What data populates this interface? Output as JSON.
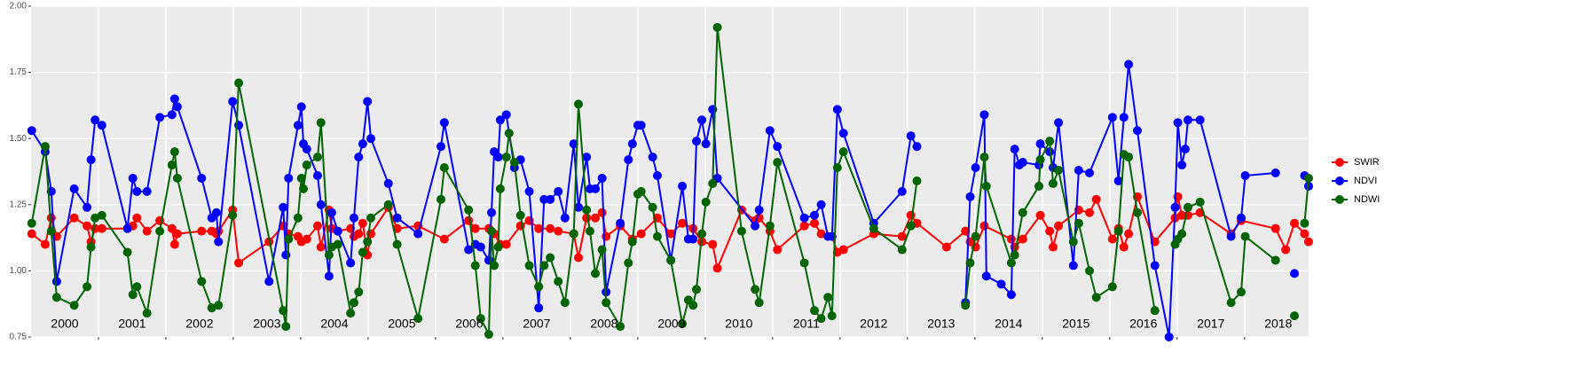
{
  "chart_data": {
    "type": "line",
    "xlim": [
      2000,
      2018.95
    ],
    "ylim": [
      0.75,
      2.0
    ],
    "yticks": [
      {
        "value": 0.75,
        "label": "0.75"
      },
      {
        "value": 1,
        "label": "1.00"
      },
      {
        "value": 1.25,
        "label": "1.25"
      },
      {
        "value": 1.5,
        "label": "1.50"
      },
      {
        "value": 1.75,
        "label": "1.75"
      },
      {
        "value": 2,
        "label": "2.00"
      }
    ],
    "xticks": [
      2001,
      2002,
      2003,
      2004,
      2005,
      2006,
      2007,
      2008,
      2009,
      2010,
      2011,
      2012,
      2013,
      2014,
      2015,
      2016,
      2017,
      2018
    ],
    "grid": true,
    "legend": "right",
    "annotations": [
      {
        "text": "2000",
        "x": 2000.5
      },
      {
        "text": "2001",
        "x": 2001.5
      },
      {
        "text": "2002",
        "x": 2002.5
      },
      {
        "text": "2003",
        "x": 2003.5
      },
      {
        "text": "2004",
        "x": 2004.5
      },
      {
        "text": "2005",
        "x": 2005.5
      },
      {
        "text": "2006",
        "x": 2006.5
      },
      {
        "text": "2007",
        "x": 2007.5
      },
      {
        "text": "2008",
        "x": 2008.5
      },
      {
        "text": "2009",
        "x": 2009.5
      },
      {
        "text": "2010",
        "x": 2010.5
      },
      {
        "text": "2011",
        "x": 2011.5
      },
      {
        "text": "2012",
        "x": 2012.5
      },
      {
        "text": "2013",
        "x": 2013.5
      },
      {
        "text": "2014",
        "x": 2014.5
      },
      {
        "text": "2015",
        "x": 2015.5
      },
      {
        "text": "2016",
        "x": 2016.5
      },
      {
        "text": "2017",
        "x": 2017.5
      },
      {
        "text": "2018",
        "x": 2018.5
      }
    ],
    "series": [
      {
        "name": "SWIR",
        "color": "#ff0000",
        "x": [
          2000.01,
          2000.21,
          2000.3,
          2000.38,
          2000.64,
          2000.83,
          2000.89,
          2000.95,
          2001.05,
          2001.43,
          2001.51,
          2001.57,
          2001.72,
          2001.91,
          2002.09,
          2002.13,
          2002.17,
          2002.53,
          2002.68,
          2002.75,
          2002.78,
          2002.99,
          2003.08,
          2003.53,
          2003.74,
          2003.82,
          2003.96,
          2004.01,
          2004.09,
          2004.25,
          2004.3,
          2004.42,
          2004.46,
          2004.55,
          2004.74,
          2004.79,
          2004.86,
          2004.92,
          2004.99,
          2005.04,
          2005.3,
          2005.43,
          2005.74,
          2006.13,
          2006.49,
          2006.59,
          2006.79,
          2006.87,
          2006.96,
          2007.05,
          2007.26,
          2007.39,
          2007.53,
          2007.7,
          2007.82,
          2008.05,
          2008.12,
          2008.24,
          2008.37,
          2008.47,
          2008.53,
          2008.74,
          2008.92,
          2009.05,
          2009.29,
          2009.49,
          2009.66,
          2009.82,
          2009.95,
          2010.11,
          2010.18,
          2010.54,
          2010.74,
          2010.8,
          2010.96,
          2011.07,
          2011.47,
          2011.62,
          2011.72,
          2011.88,
          2011.96,
          2012.05,
          2012.5,
          2012.92,
          2013.05,
          2013.14,
          2013.58,
          2013.86,
          2013.93,
          2014.01,
          2014.14,
          2014.54,
          2014.59,
          2014.71,
          2014.97,
          2015.11,
          2015.16,
          2015.24,
          2015.54,
          2015.7,
          2015.8,
          2016.04,
          2016.13,
          2016.21,
          2016.28,
          2016.41,
          2016.67,
          2016.97,
          2017.01,
          2017.07,
          2017.16,
          2017.34,
          2017.8,
          2017.95,
          2018.46,
          2018.61,
          2018.74,
          2018.89,
          2018.95
        ],
        "values": [
          1.14,
          1.1,
          1.2,
          1.13,
          1.2,
          1.17,
          1.11,
          1.16,
          1.16,
          1.16,
          1.17,
          1.2,
          1.15,
          1.19,
          1.16,
          1.1,
          1.14,
          1.15,
          1.15,
          1.14,
          1.15,
          1.23,
          1.03,
          1.11,
          1.17,
          1.14,
          1.13,
          1.11,
          1.12,
          1.17,
          1.09,
          1.23,
          1.16,
          1.15,
          1.16,
          1.13,
          1.14,
          1.18,
          1.06,
          1.14,
          1.24,
          1.16,
          1.17,
          1.12,
          1.19,
          1.16,
          1.16,
          1.14,
          1.1,
          1.1,
          1.17,
          1.19,
          1.16,
          1.16,
          1.15,
          1.14,
          1.05,
          1.2,
          1.2,
          1.22,
          1.13,
          1.17,
          1.12,
          1.14,
          1.2,
          1.14,
          1.18,
          1.16,
          1.11,
          1.1,
          1.01,
          1.23,
          1.19,
          1.2,
          1.15,
          1.08,
          1.17,
          1.18,
          1.14,
          1.13,
          1.07,
          1.08,
          1.14,
          1.13,
          1.21,
          1.18,
          1.09,
          1.15,
          1.11,
          1.09,
          1.17,
          1.12,
          1.09,
          1.12,
          1.21,
          1.15,
          1.09,
          1.17,
          1.23,
          1.22,
          1.27,
          1.12,
          1.16,
          1.09,
          1.14,
          1.28,
          1.11,
          1.2,
          1.28,
          1.21,
          1.21,
          1.22,
          1.14,
          1.19,
          1.16,
          1.08,
          1.18,
          1.14,
          1.11
        ]
      },
      {
        "name": "NDVI",
        "color": "#0000ff",
        "x": [
          2000.01,
          2000.21,
          2000.3,
          2000.38,
          2000.64,
          2000.83,
          2000.89,
          2000.95,
          2001.05,
          2001.43,
          2001.51,
          2001.57,
          2001.72,
          2001.91,
          2002.09,
          2002.13,
          2002.17,
          2002.53,
          2002.68,
          2002.75,
          2002.78,
          2002.99,
          2003.08,
          2003.53,
          2003.74,
          2003.78,
          2003.82,
          2003.96,
          2004.01,
          2004.04,
          2004.09,
          2004.25,
          2004.3,
          2004.42,
          2004.46,
          2004.55,
          2004.74,
          2004.79,
          2004.86,
          2004.92,
          2004.99,
          2005.04,
          2005.3,
          2005.43,
          2005.74,
          2006.08,
          2006.13,
          2006.49,
          2006.59,
          2006.67,
          2006.79,
          2006.83,
          2006.87,
          2006.93,
          2006.96,
          2007.05,
          2007.17,
          2007.26,
          2007.39,
          2007.53,
          2007.61,
          2007.7,
          2007.82,
          2007.92,
          2008.05,
          2008.12,
          2008.24,
          2008.29,
          2008.37,
          2008.47,
          2008.53,
          2008.74,
          2008.86,
          2008.92,
          2009.0,
          2009.05,
          2009.22,
          2009.29,
          2009.49,
          2009.66,
          2009.75,
          2009.82,
          2009.87,
          2009.95,
          2010.01,
          2010.11,
          2010.18,
          2010.74,
          2010.8,
          2010.96,
          2011.07,
          2011.47,
          2011.62,
          2011.72,
          2011.82,
          2011.88,
          2011.96,
          2012.05,
          2012.5,
          2012.92,
          2013.05,
          2013.14,
          null,
          2013.86,
          2013.93,
          2014.01,
          2014.14,
          2014.17,
          2014.39,
          2014.54,
          2014.59,
          2014.66,
          2014.71,
          2014.95,
          2014.97,
          2015.11,
          2015.16,
          2015.24,
          2015.46,
          2015.54,
          2015.7,
          2016.04,
          2016.13,
          2016.21,
          2016.28,
          2016.41,
          2016.67,
          2016.88,
          2016.97,
          2017.01,
          2017.07,
          2017.12,
          2017.16,
          2017.34,
          2017.8,
          2017.95,
          2018.01,
          2018.46,
          null,
          2018.74,
          null,
          2018.89,
          2018.95
        ],
        "values": [
          1.53,
          1.45,
          1.3,
          0.96,
          1.31,
          1.24,
          1.42,
          1.57,
          1.55,
          1.16,
          1.35,
          1.3,
          1.3,
          1.58,
          1.59,
          1.65,
          1.62,
          1.35,
          1.2,
          1.22,
          1.11,
          1.64,
          1.55,
          0.96,
          1.24,
          1.06,
          1.35,
          1.55,
          1.62,
          1.48,
          1.46,
          1.36,
          1.25,
          0.98,
          1.22,
          1.15,
          1.03,
          1.2,
          1.43,
          1.48,
          1.64,
          1.5,
          1.33,
          1.2,
          1.14,
          1.47,
          1.56,
          1.08,
          1.1,
          1.09,
          1.04,
          1.22,
          1.45,
          1.43,
          1.57,
          1.59,
          1.39,
          1.42,
          1.3,
          0.86,
          1.27,
          1.27,
          1.3,
          1.2,
          1.48,
          1.24,
          1.43,
          1.31,
          1.31,
          1.35,
          0.92,
          1.18,
          1.42,
          1.48,
          1.55,
          1.55,
          1.43,
          1.36,
          1.04,
          1.32,
          1.12,
          1.12,
          1.49,
          1.57,
          1.48,
          1.61,
          1.35,
          1.17,
          1.23,
          1.53,
          1.47,
          1.2,
          1.21,
          1.25,
          1.13,
          1.13,
          1.61,
          1.52,
          1.18,
          1.3,
          1.51,
          1.47,
          null,
          0.88,
          1.28,
          1.39,
          1.59,
          0.98,
          0.95,
          0.91,
          1.46,
          1.4,
          1.41,
          1.4,
          1.48,
          1.45,
          1.39,
          1.56,
          1.02,
          1.38,
          1.37,
          1.58,
          1.34,
          1.58,
          1.78,
          1.53,
          1.02,
          0.75,
          1.24,
          1.56,
          1.4,
          1.46,
          1.57,
          1.57,
          1.13,
          1.2,
          1.36,
          1.37,
          null,
          0.99,
          null,
          1.36,
          1.32
        ]
      },
      {
        "name": "NDWI",
        "color": "#006400",
        "x": [
          2000.01,
          2000.21,
          2000.3,
          2000.38,
          2000.64,
          2000.83,
          2000.89,
          2000.95,
          2001.05,
          2001.43,
          2001.51,
          2001.57,
          2001.72,
          2001.91,
          2002.09,
          2002.13,
          2002.17,
          2002.53,
          2002.68,
          2002.78,
          2002.99,
          2003.08,
          2003.74,
          2003.78,
          2003.82,
          2003.96,
          2004.01,
          2004.04,
          2004.09,
          2004.25,
          2004.3,
          2004.42,
          2004.46,
          2004.55,
          2004.74,
          2004.79,
          2004.86,
          2004.92,
          2004.99,
          2005.04,
          2005.3,
          2005.43,
          2005.74,
          2006.08,
          2006.13,
          2006.49,
          2006.59,
          2006.67,
          2006.79,
          2006.83,
          2006.87,
          2006.93,
          2006.96,
          2007.05,
          2007.09,
          2007.17,
          2007.26,
          2007.39,
          2007.53,
          2007.61,
          2007.7,
          2007.82,
          2007.92,
          2008.05,
          2008.12,
          2008.24,
          2008.29,
          2008.37,
          2008.47,
          2008.53,
          2008.74,
          2008.86,
          2008.92,
          2009.0,
          2009.05,
          2009.22,
          2009.29,
          2009.49,
          2009.66,
          2009.75,
          2009.82,
          2009.87,
          2009.95,
          2010.01,
          2010.11,
          2010.18,
          2010.54,
          2010.74,
          2010.8,
          2010.96,
          2011.07,
          2011.47,
          2011.62,
          2011.72,
          2011.82,
          2011.88,
          2011.96,
          2012.05,
          2012.5,
          2012.92,
          2013.05,
          2013.14,
          null,
          2013.86,
          2013.93,
          2014.01,
          2014.14,
          2014.17,
          2014.54,
          2014.59,
          2014.71,
          2014.95,
          2014.97,
          2015.11,
          2015.16,
          2015.24,
          2015.46,
          2015.54,
          2015.7,
          2015.8,
          2016.04,
          2016.13,
          2016.21,
          2016.28,
          2016.41,
          2016.67,
          null,
          2016.97,
          2017.01,
          2017.07,
          2017.16,
          2017.34,
          2017.8,
          2017.95,
          2018.01,
          2018.46,
          null,
          2018.74,
          null,
          2018.89,
          2018.95
        ],
        "values": [
          1.18,
          1.47,
          1.15,
          0.9,
          0.87,
          0.94,
          1.09,
          1.2,
          1.21,
          1.07,
          0.91,
          0.94,
          0.84,
          1.15,
          1.4,
          1.45,
          1.35,
          0.96,
          0.86,
          0.87,
          1.21,
          1.71,
          0.85,
          0.79,
          1.12,
          1.2,
          1.35,
          1.31,
          1.4,
          1.43,
          1.56,
          1.06,
          1.09,
          1.1,
          0.84,
          0.88,
          0.92,
          1.07,
          1.11,
          1.2,
          1.25,
          1.1,
          0.82,
          1.27,
          1.39,
          1.23,
          1.02,
          0.82,
          0.76,
          1.15,
          1.02,
          1.09,
          1.31,
          1.43,
          1.52,
          1.41,
          1.21,
          1.02,
          0.94,
          1.02,
          1.05,
          0.96,
          0.88,
          1.14,
          1.63,
          1.23,
          1.15,
          0.99,
          1.08,
          0.88,
          0.79,
          1.03,
          1.11,
          1.29,
          1.3,
          1.24,
          1.13,
          1.04,
          0.8,
          0.89,
          0.87,
          0.93,
          1.14,
          1.26,
          1.33,
          1.92,
          1.15,
          0.93,
          0.88,
          1.17,
          1.41,
          1.03,
          0.85,
          0.82,
          0.9,
          0.83,
          1.39,
          1.45,
          1.16,
          1.08,
          1.17,
          1.34,
          null,
          0.87,
          1.03,
          1.13,
          1.43,
          1.32,
          1.03,
          1.06,
          1.22,
          1.32,
          1.42,
          1.49,
          1.33,
          1.38,
          1.11,
          1.18,
          1.0,
          0.9,
          0.94,
          1.15,
          1.44,
          1.43,
          1.22,
          0.85,
          null,
          1.1,
          1.12,
          1.14,
          1.24,
          1.26,
          0.88,
          0.92,
          1.13,
          1.04,
          null,
          0.83,
          null,
          1.18,
          1.35
        ]
      }
    ]
  }
}
